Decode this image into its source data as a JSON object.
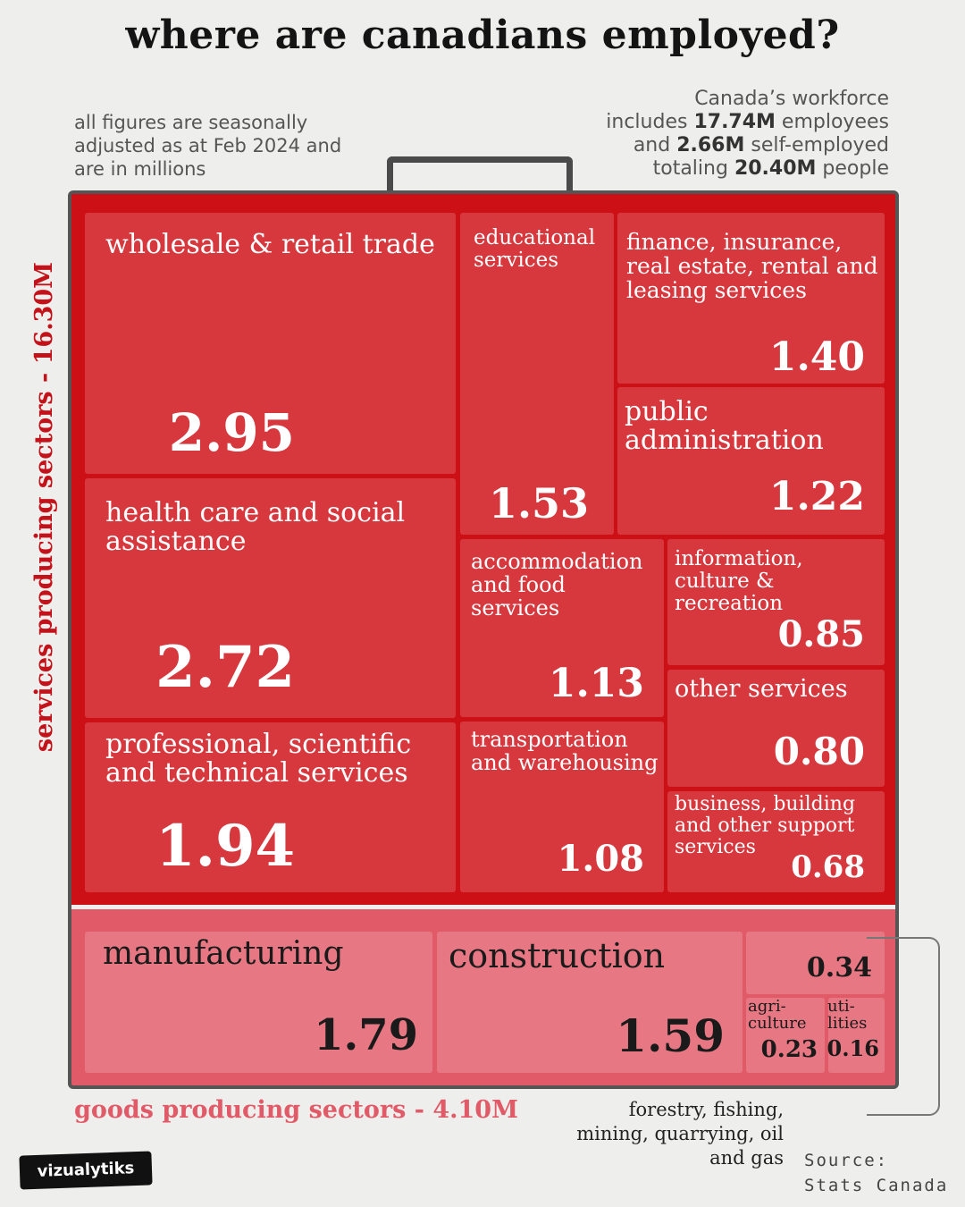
{
  "title": "where are canadians employed?",
  "notes": {
    "left": "all figures are seasonally adjusted as at Feb 2024 and are in millions",
    "right_l1": "Canada’s workforce",
    "right_l2a": "includes ",
    "right_l2b": "17.74M",
    "right_l2c": " employees",
    "right_l3a": "and ",
    "right_l3b": "2.66M",
    "right_l3c": " self-employed",
    "right_l4a": "totaling ",
    "right_l4b": "20.40M",
    "right_l4c": " people"
  },
  "labels": {
    "services_side": "services producing  sectors - 16.30M",
    "goods_bottom": "goods producing sectors - 4.10M",
    "footnote": "forestry, fishing, mining, quarrying, oil and gas",
    "source_l1": "Source:",
    "source_l2": "Stats Canada",
    "logo": "vizualytiks"
  },
  "colors": {
    "services_bg": "#cc1015",
    "services_tile": "#d6383e",
    "goods_bg": "#e15a67",
    "goods_tile": "#e77883"
  },
  "chart_data": {
    "type": "treemap",
    "title": "where are canadians employed?",
    "unit": "millions",
    "groups": [
      {
        "name": "services producing  sectors - 16.30M",
        "total": 16.3,
        "items": [
          {
            "label": "wholesale & retail trade",
            "value": 2.95
          },
          {
            "label": "health care and social assistance",
            "value": 2.72
          },
          {
            "label": "professional, scientific and technical services",
            "value": 1.94
          },
          {
            "label": "educational services",
            "value": 1.53
          },
          {
            "label": "finance, insurance, real estate, rental and leasing services",
            "value": 1.4
          },
          {
            "label": "public administration",
            "value": 1.22
          },
          {
            "label": "accommodation and food services",
            "value": 1.13
          },
          {
            "label": "transportation and warehousing",
            "value": 1.08
          },
          {
            "label": "information, culture & recreation",
            "value": 0.85
          },
          {
            "label": "other services",
            "value": 0.8
          },
          {
            "label": "business, building and other support services",
            "value": 0.68
          }
        ]
      },
      {
        "name": "goods producing sectors - 4.10M",
        "total": 4.1,
        "items": [
          {
            "label": "manufacturing",
            "value": 1.79
          },
          {
            "label": "construction",
            "value": 1.59
          },
          {
            "label": "",
            "value": 0.34
          },
          {
            "label": "agri- culture",
            "value": 0.23
          },
          {
            "label": "uti- lities",
            "value": 0.16
          }
        ]
      }
    ]
  }
}
